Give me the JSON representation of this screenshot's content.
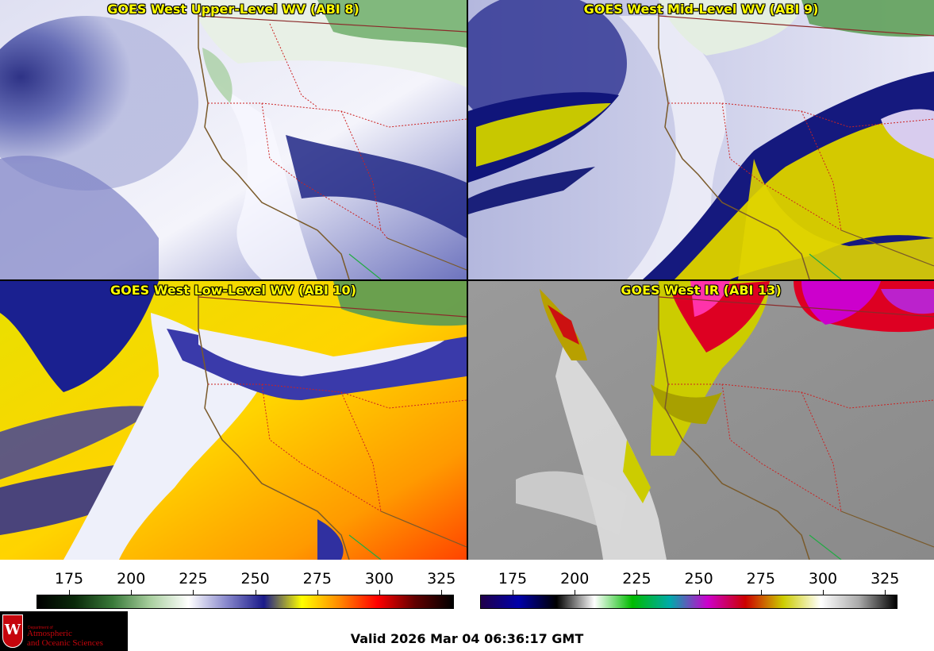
{
  "panels": [
    {
      "title": "GOES West Upper-Level WV (ABI 8)"
    },
    {
      "title": "GOES West Mid-Level WV (ABI 9)"
    },
    {
      "title": "GOES West Low-Level WV (ABI 10)"
    },
    {
      "title": "GOES West IR (ABI 13)"
    }
  ],
  "colorbar_wv": {
    "ticks": [
      "175",
      "200",
      "225",
      "250",
      "275",
      "300",
      "325"
    ],
    "colors": [
      "#000000",
      "#0a2a0a",
      "#3a7a3a",
      "#aad0a0",
      "#ffffff",
      "#8888cc",
      "#1a1a8a",
      "#ffff00",
      "#ff8800",
      "#ff0000",
      "#600000",
      "#000000"
    ]
  },
  "colorbar_ir": {
    "ticks": [
      "175",
      "200",
      "225",
      "250",
      "275",
      "300",
      "325"
    ],
    "colors": [
      "#20004a",
      "#0000aa",
      "#000000",
      "#ffffff",
      "#00bb00",
      "#00aaaa",
      "#cc00cc",
      "#cc0000",
      "#cccc00",
      "#ffffff",
      "#aaaaaa",
      "#000000"
    ]
  },
  "logo": {
    "department": "Department of",
    "line1": "Atmospheric",
    "line2": "and Oceanic Sciences",
    "crest_letter": "W"
  },
  "valid_time": "Valid 2026 Mar 04 06:36:17 GMT"
}
